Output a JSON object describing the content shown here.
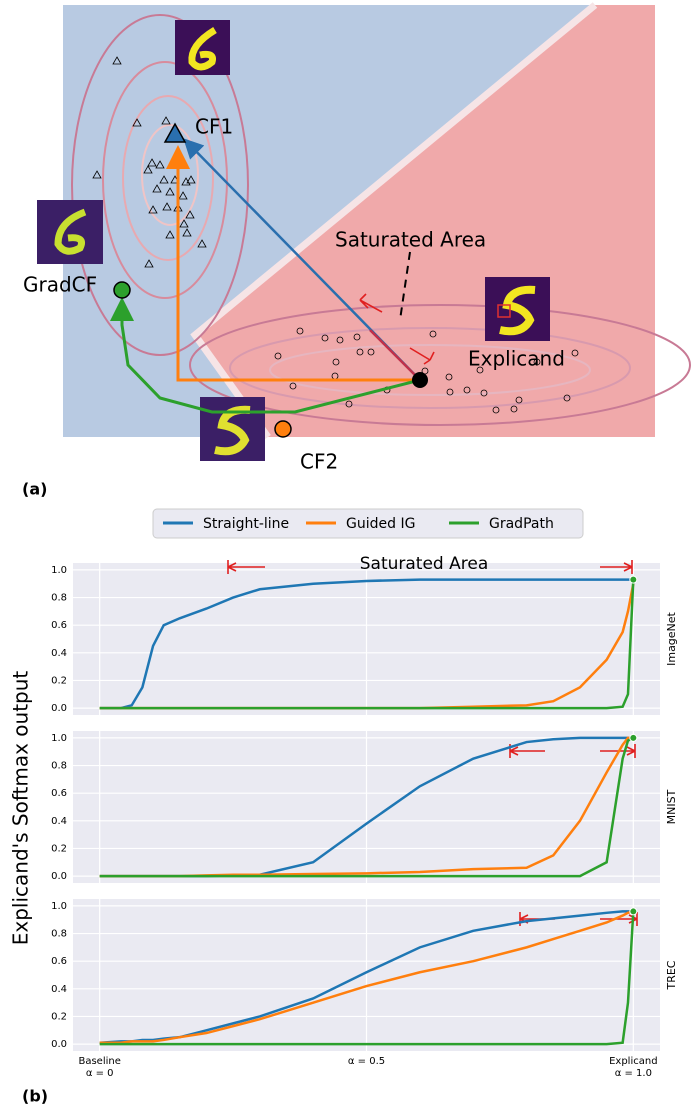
{
  "panel_a": {
    "label": "(a)",
    "saturated_area": "Saturated Area",
    "explicand": "Explicand",
    "cf1": "CF1",
    "cf2": "CF2",
    "gradcf": "GradCF"
  },
  "panel_b": {
    "label": "(b)",
    "ylabel": "Explicand's Softmax output"
  },
  "chart_data": [
    {
      "type": "line",
      "title": "ImageNet",
      "annotation": "Saturated Area",
      "xlim": [
        -0.05,
        1.05
      ],
      "ylim": [
        -0.05,
        1.05
      ],
      "grid": true,
      "xticks": [
        0,
        0.5,
        1
      ],
      "yticks": [
        {
          "value": 0,
          "label": "0.0"
        },
        0.2,
        0.4,
        0.6,
        0.8,
        {
          "value": 1,
          "label": "1.0"
        }
      ],
      "x": [
        0,
        0.04,
        0.06,
        0.08,
        0.1,
        0.12,
        0.15,
        0.2,
        0.25,
        0.3,
        0.4,
        0.5,
        0.6,
        0.7,
        0.8,
        0.85,
        0.9,
        0.95,
        0.98,
        0.99,
        1.0
      ],
      "series": [
        {
          "name": "Straight-line",
          "color": "#1f77b4",
          "values": [
            0,
            0,
            0.02,
            0.15,
            0.45,
            0.6,
            0.65,
            0.72,
            0.8,
            0.86,
            0.9,
            0.92,
            0.93,
            0.93,
            0.93,
            0.93,
            0.93,
            0.93,
            0.93,
            0.93,
            0.93
          ]
        },
        {
          "name": "Guided IG",
          "color": "#ff7f0e",
          "values": [
            0,
            0,
            0,
            0,
            0,
            0,
            0,
            0,
            0,
            0,
            0,
            0,
            0,
            0.01,
            0.02,
            0.05,
            0.15,
            0.35,
            0.55,
            0.7,
            0.9
          ]
        },
        {
          "name": "GradPath",
          "color": "#2ca02c",
          "values": [
            0,
            0,
            0,
            0,
            0,
            0,
            0,
            0,
            0,
            0,
            0,
            0,
            0,
            0,
            0,
            0,
            0,
            0,
            0.01,
            0.1,
            0.93
          ]
        }
      ]
    },
    {
      "type": "line",
      "title": "MNIST",
      "xlim": [
        -0.05,
        1.05
      ],
      "ylim": [
        -0.05,
        1.05
      ],
      "grid": true,
      "xticks": [
        0,
        0.5,
        1
      ],
      "yticks": [
        {
          "value": 0,
          "label": "0.0"
        },
        0.2,
        0.4,
        0.6,
        0.8,
        {
          "value": 1,
          "label": "1.0"
        }
      ],
      "x": [
        0,
        0.04,
        0.06,
        0.08,
        0.1,
        0.12,
        0.15,
        0.2,
        0.25,
        0.3,
        0.4,
        0.5,
        0.6,
        0.7,
        0.8,
        0.85,
        0.9,
        0.95,
        0.98,
        0.99,
        1.0
      ],
      "series": [
        {
          "name": "Straight-line",
          "color": "#1f77b4",
          "values": [
            0,
            0,
            0,
            0,
            0,
            0,
            0,
            0,
            0.005,
            0.01,
            0.1,
            0.38,
            0.65,
            0.85,
            0.97,
            0.99,
            1.0,
            1.0,
            1.0,
            1.0,
            1.0
          ]
        },
        {
          "name": "Guided IG",
          "color": "#ff7f0e",
          "values": [
            0,
            0,
            0,
            0,
            0,
            0,
            0,
            0.005,
            0.01,
            0.01,
            0.015,
            0.02,
            0.03,
            0.05,
            0.06,
            0.15,
            0.4,
            0.75,
            0.95,
            1.0,
            1.0
          ]
        },
        {
          "name": "GradPath",
          "color": "#2ca02c",
          "values": [
            0,
            0,
            0,
            0,
            0,
            0,
            0,
            0,
            0,
            0,
            0,
            0,
            0,
            0,
            0,
            0,
            0,
            0.1,
            0.85,
            0.98,
            1.0
          ]
        }
      ]
    },
    {
      "type": "line",
      "title": "TREC",
      "xlim": [
        -0.05,
        1.05
      ],
      "ylim": [
        -0.05,
        1.05
      ],
      "grid": true,
      "xticks": [
        {
          "value": 0,
          "label": "Baseline\nα = 0"
        },
        {
          "value": 0.5,
          "label": "α = 0.5"
        },
        {
          "value": 1,
          "label": "Explicand\nα = 1.0"
        }
      ],
      "yticks": [
        {
          "value": 0,
          "label": "0.0"
        },
        0.2,
        0.4,
        0.6,
        0.8,
        {
          "value": 1,
          "label": "1.0"
        }
      ],
      "x": [
        0,
        0.04,
        0.06,
        0.08,
        0.1,
        0.12,
        0.15,
        0.2,
        0.25,
        0.3,
        0.4,
        0.5,
        0.6,
        0.7,
        0.8,
        0.85,
        0.9,
        0.95,
        0.98,
        0.99,
        1.0
      ],
      "series": [
        {
          "name": "Straight-line",
          "color": "#1f77b4",
          "values": [
            0.01,
            0.02,
            0.02,
            0.03,
            0.03,
            0.04,
            0.05,
            0.1,
            0.15,
            0.2,
            0.33,
            0.52,
            0.7,
            0.82,
            0.89,
            0.91,
            0.93,
            0.95,
            0.96,
            0.96,
            0.96
          ]
        },
        {
          "name": "Guided IG",
          "color": "#ff7f0e",
          "values": [
            0.01,
            0.01,
            0.02,
            0.02,
            0.02,
            0.03,
            0.05,
            0.08,
            0.13,
            0.18,
            0.3,
            0.42,
            0.52,
            0.6,
            0.7,
            0.76,
            0.82,
            0.88,
            0.93,
            0.95,
            0.96
          ]
        },
        {
          "name": "GradPath",
          "color": "#2ca02c",
          "values": [
            0,
            0,
            0,
            0,
            0,
            0,
            0,
            0,
            0,
            0,
            0,
            0,
            0,
            0,
            0,
            0,
            0,
            0,
            0.01,
            0.3,
            0.96
          ]
        }
      ]
    }
  ]
}
